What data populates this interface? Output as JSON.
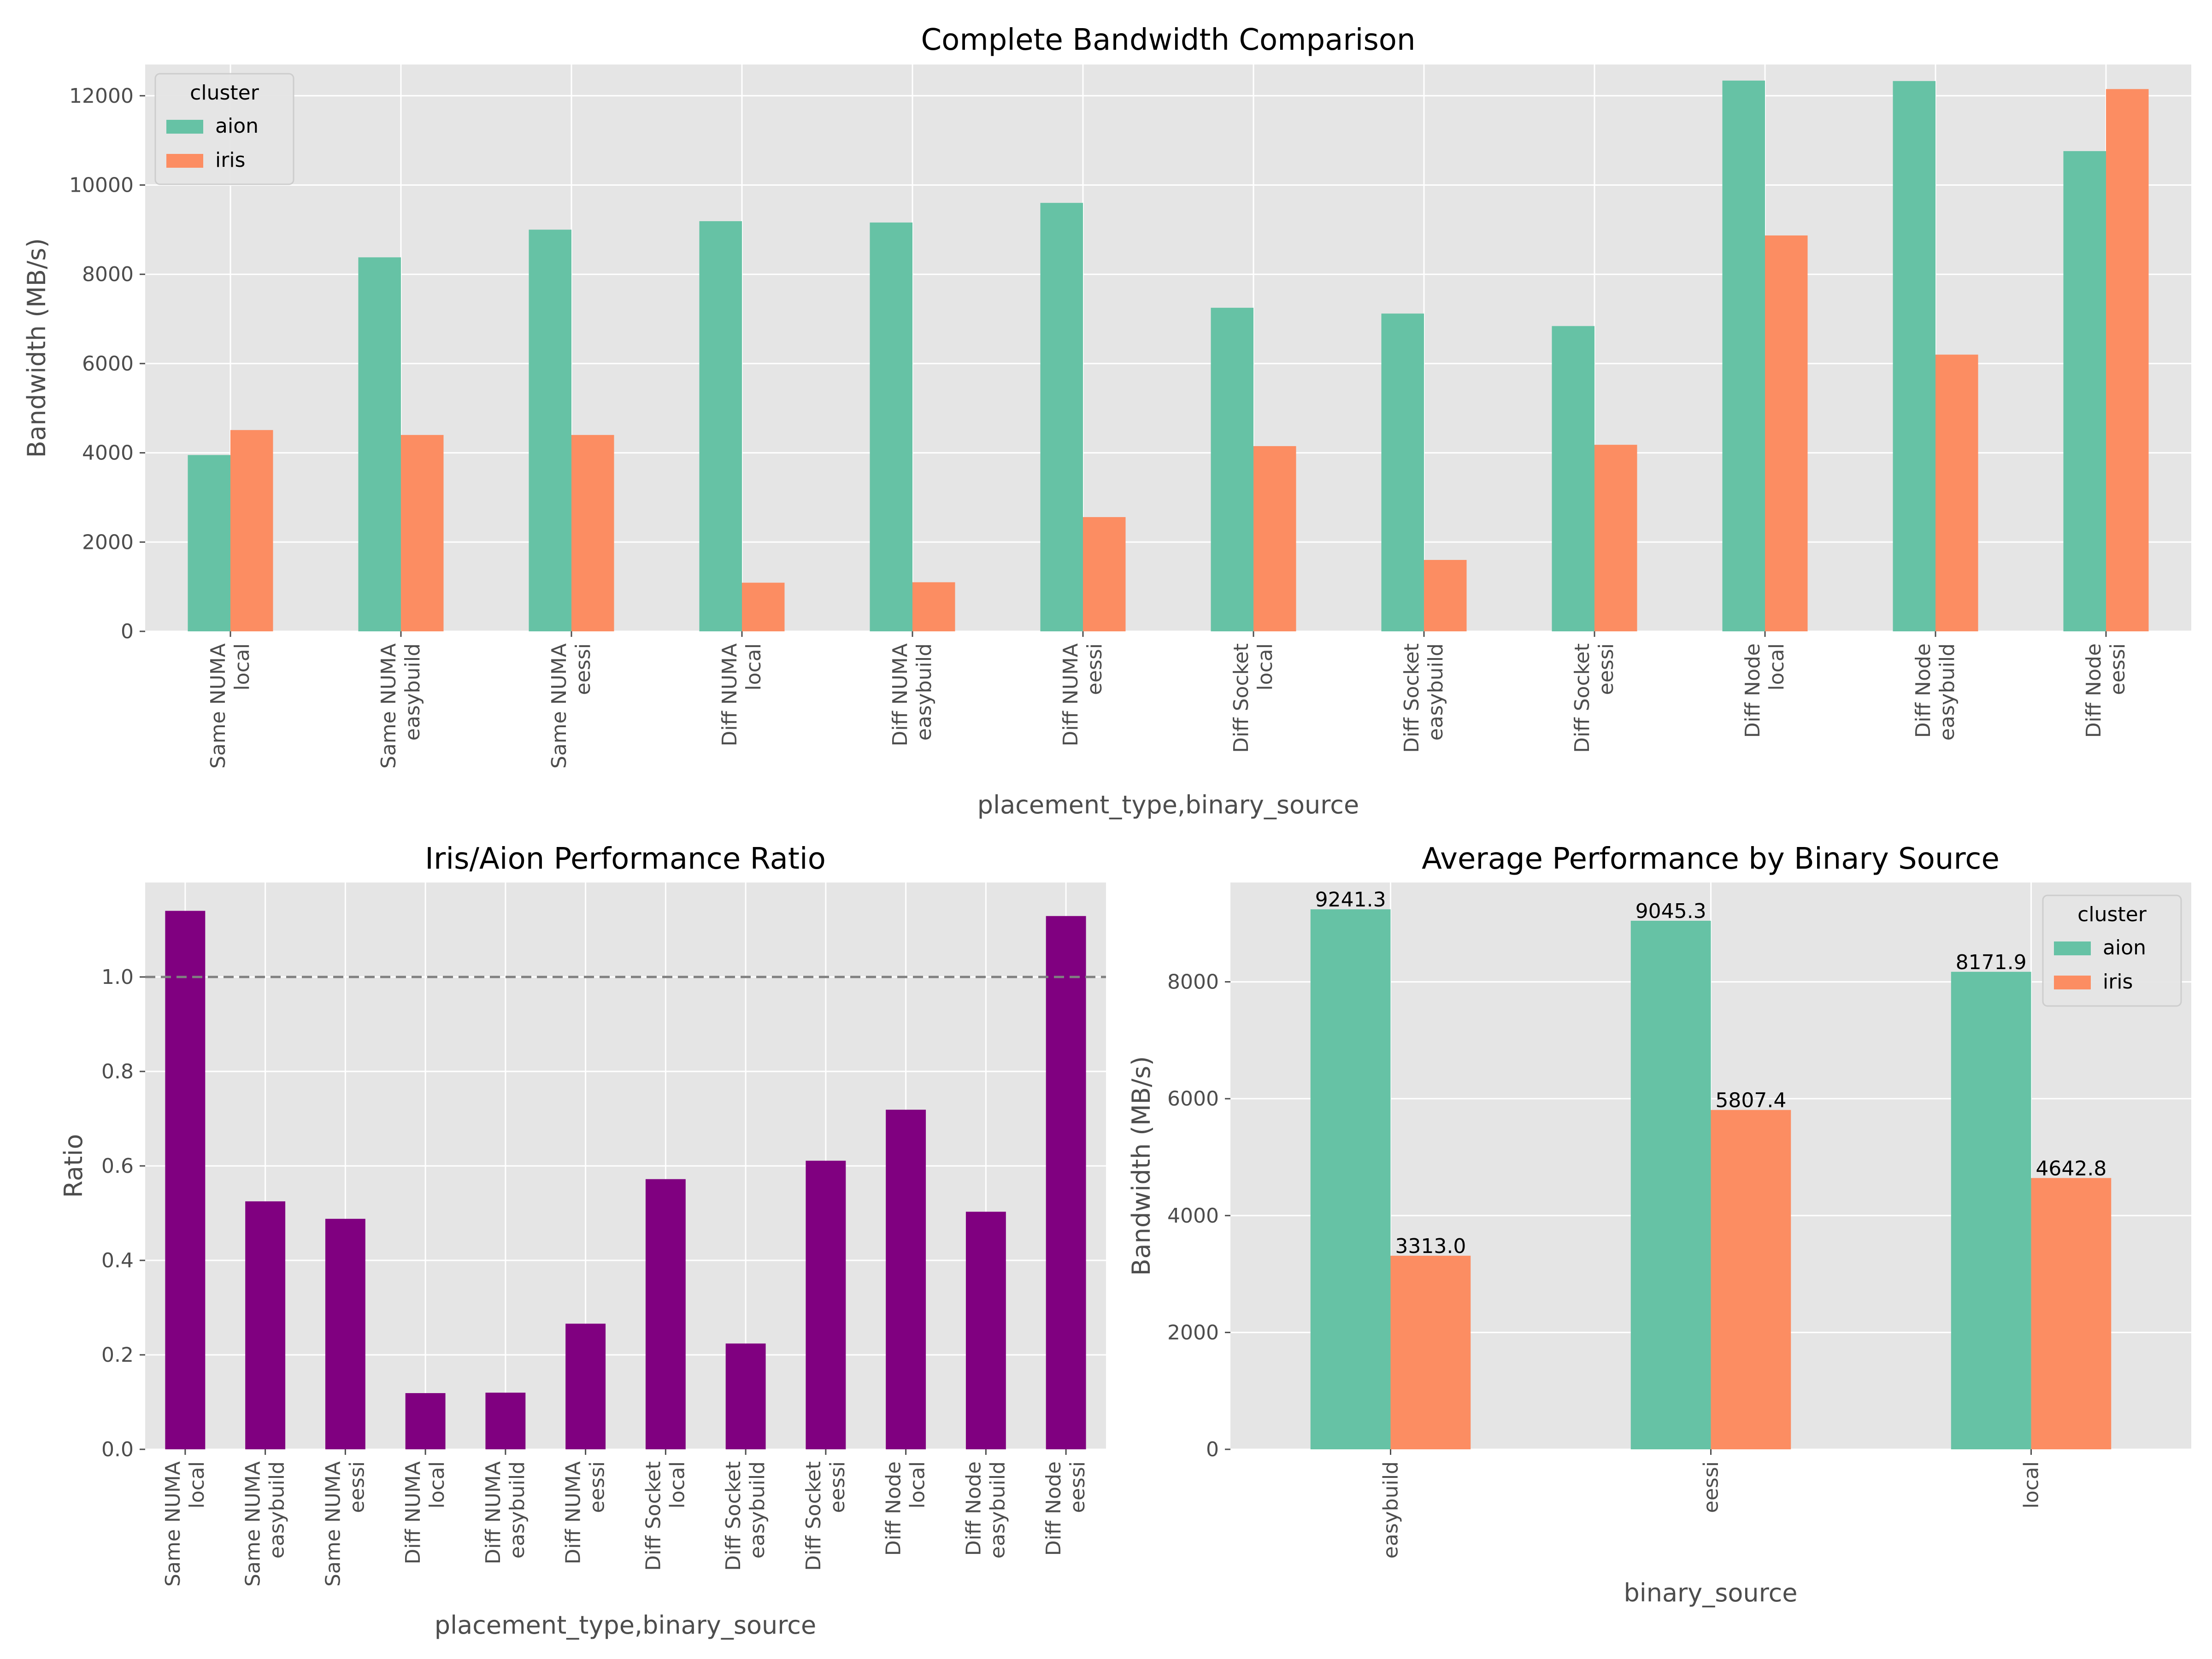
{
  "colors": {
    "background": "#e5e5e5",
    "grid": "#ffffff",
    "aion": "#66c2a5",
    "iris": "#fc8d62",
    "ratio": "#800080",
    "reference_line": "#808080"
  },
  "chart_data": [
    {
      "type": "bar",
      "title": "Complete Bandwidth Comparison",
      "xlabel": "placement_type,binary_source",
      "ylabel": "Bandwidth (MB/s)",
      "categories": [
        [
          "Same NUMA",
          "local"
        ],
        [
          "Same NUMA",
          "easybuild"
        ],
        [
          "Same NUMA",
          "eessi"
        ],
        [
          "Diff NUMA",
          "local"
        ],
        [
          "Diff NUMA",
          "easybuild"
        ],
        [
          "Diff NUMA",
          "eessi"
        ],
        [
          "Diff Socket",
          "local"
        ],
        [
          "Diff Socket",
          "easybuild"
        ],
        [
          "Diff Socket",
          "eessi"
        ],
        [
          "Diff Node",
          "local"
        ],
        [
          "Diff Node",
          "easybuild"
        ],
        [
          "Diff Node",
          "eessi"
        ]
      ],
      "series": [
        {
          "name": "aion",
          "values": [
            3950,
            8380,
            9000,
            9190,
            9160,
            9600,
            7250,
            7120,
            6840,
            12340,
            12330,
            10760
          ]
        },
        {
          "name": "iris",
          "values": [
            4510,
            4400,
            4400,
            1090,
            1100,
            2560,
            4150,
            1600,
            4180,
            8870,
            6200,
            12150
          ]
        }
      ],
      "ylim": [
        0,
        12700
      ],
      "yticks": [
        0,
        2000,
        4000,
        6000,
        8000,
        10000,
        12000
      ],
      "legend": {
        "title": "cluster",
        "position": "top-left"
      },
      "grid": true
    },
    {
      "type": "bar",
      "title": "Iris/Aion Performance Ratio",
      "xlabel": "placement_type,binary_source",
      "ylabel": "Ratio",
      "categories": [
        [
          "Same NUMA",
          "local"
        ],
        [
          "Same NUMA",
          "easybuild"
        ],
        [
          "Same NUMA",
          "eessi"
        ],
        [
          "Diff NUMA",
          "local"
        ],
        [
          "Diff NUMA",
          "easybuild"
        ],
        [
          "Diff NUMA",
          "eessi"
        ],
        [
          "Diff Socket",
          "local"
        ],
        [
          "Diff Socket",
          "easybuild"
        ],
        [
          "Diff Socket",
          "eessi"
        ],
        [
          "Diff Node",
          "local"
        ],
        [
          "Diff Node",
          "easybuild"
        ],
        [
          "Diff Node",
          "eessi"
        ]
      ],
      "values": [
        1.14,
        0.525,
        0.488,
        0.119,
        0.12,
        0.266,
        0.572,
        0.224,
        0.611,
        0.719,
        0.503,
        1.129
      ],
      "ylim": [
        0,
        1.2
      ],
      "yticks": [
        0.0,
        0.2,
        0.4,
        0.6,
        0.8,
        1.0
      ],
      "reference_line": {
        "y": 1.0,
        "style": "dashed"
      },
      "grid": true
    },
    {
      "type": "bar",
      "title": "Average Performance by Binary Source",
      "xlabel": "binary_source",
      "ylabel": "Bandwidth (MB/s)",
      "categories": [
        "easybuild",
        "eessi",
        "local"
      ],
      "series": [
        {
          "name": "aion",
          "values": [
            9241.3,
            9045.3,
            8171.9
          ],
          "labels": [
            "9241.3",
            "9045.3",
            "8171.9"
          ]
        },
        {
          "name": "iris",
          "values": [
            3313.0,
            5807.4,
            4642.8
          ],
          "labels": [
            "3313.0",
            "5807.4",
            "4642.8"
          ]
        }
      ],
      "ylim": [
        0,
        9700
      ],
      "yticks": [
        0,
        2000,
        4000,
        6000,
        8000
      ],
      "legend": {
        "title": "cluster",
        "position": "top-right"
      },
      "grid": true
    }
  ]
}
